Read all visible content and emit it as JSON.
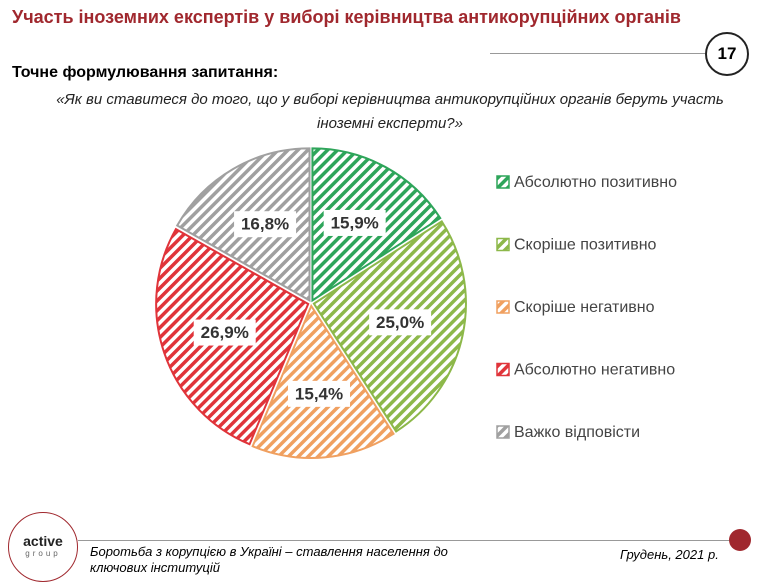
{
  "title": "Участь іноземних експертів у виборі керівництва антикорупційних органів",
  "page_number": "17",
  "subtitle": "Точне формулювання запитання:",
  "question": "«Як ви ставитеся до того, що у виборі керівництва антикорупційних органів беруть участь іноземні експерти?»",
  "logo": {
    "top": "active",
    "bottom": "group"
  },
  "footer": {
    "left": "Боротьба з корупцією в Україні – ставлення населення до ключових інституцій",
    "right": "Грудень, 2021 р."
  },
  "chart_data": {
    "type": "pie",
    "categories": [
      "Абсолютно позитивно",
      "Скоріше позитивно",
      "Скоріше негативно",
      "Абсолютно негативно",
      "Важко відповісти"
    ],
    "values": [
      15.9,
      25.0,
      15.4,
      26.9,
      16.8
    ],
    "value_labels": [
      "15,9%",
      "25,0%",
      "15,4%",
      "26,9%",
      "16,8%"
    ],
    "colors": [
      "#2ea55a",
      "#8db84a",
      "#f0a060",
      "#e0343a",
      "#a0a0a0"
    ],
    "legend": "right"
  }
}
